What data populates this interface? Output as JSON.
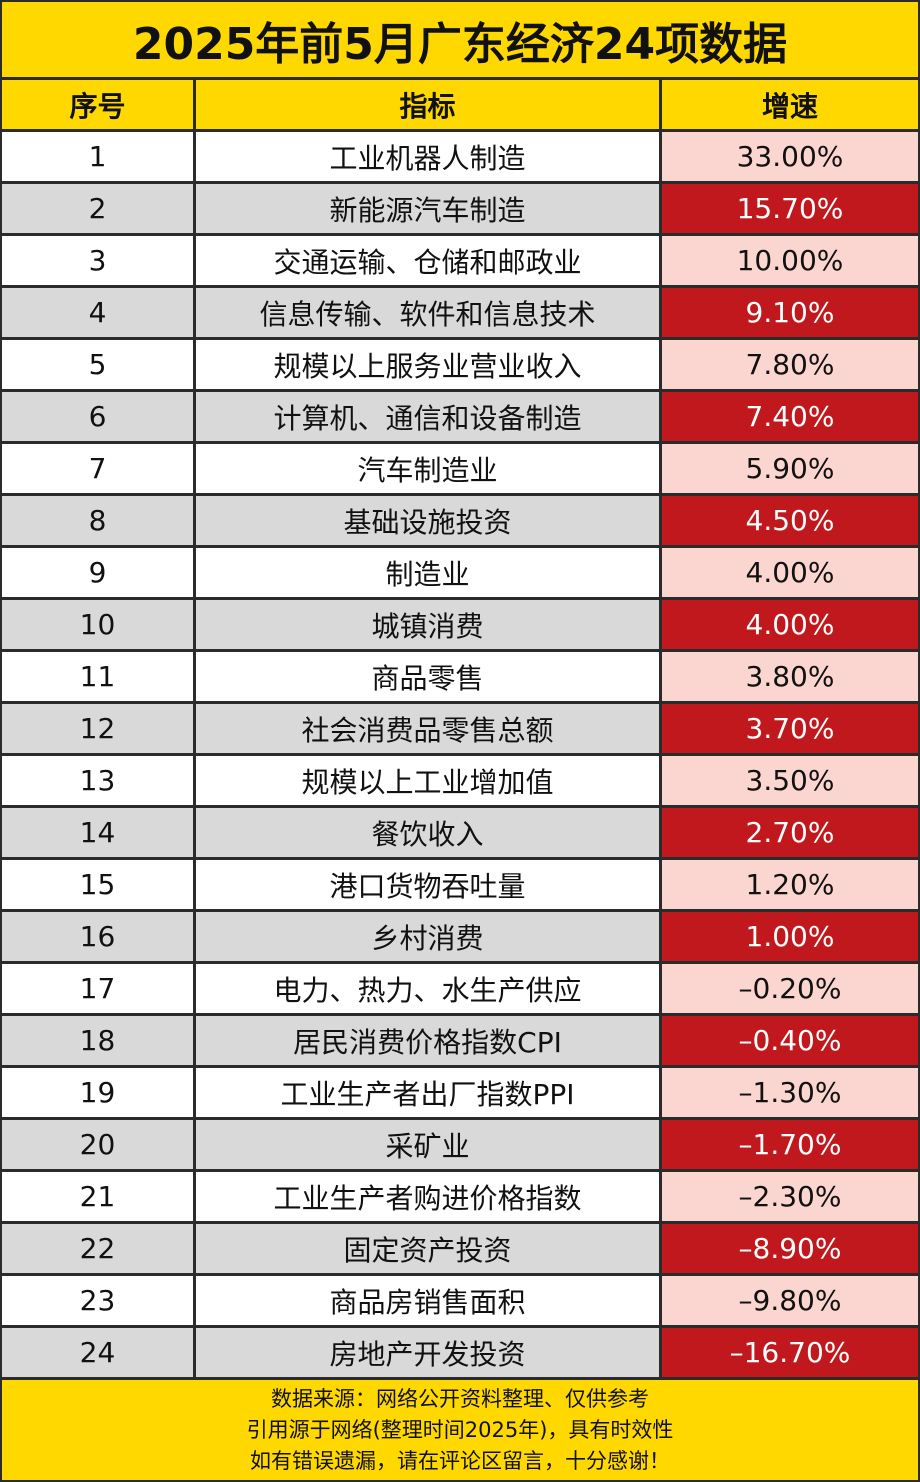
{
  "title": "2025年前5月广东经济24项数据",
  "header": {
    "index": "序号",
    "indicator": "指标",
    "growth": "增速"
  },
  "colors": {
    "banner": "#ffd800",
    "odd_rate_bg": "#fbd5d0",
    "even_rate_bg": "#c0181d",
    "even_row_bg": "#d9d9d9",
    "odd_row_bg": "#ffffff",
    "border": "#2b2b2b"
  },
  "rows": [
    {
      "index": "1",
      "indicator": "工业机器人制造",
      "growth": "33.00%"
    },
    {
      "index": "2",
      "indicator": "新能源汽车制造",
      "growth": "15.70%"
    },
    {
      "index": "3",
      "indicator": "交通运输、仓储和邮政业",
      "growth": "10.00%"
    },
    {
      "index": "4",
      "indicator": "信息传输、软件和信息技术",
      "growth": "9.10%"
    },
    {
      "index": "5",
      "indicator": "规模以上服务业营业收入",
      "growth": "7.80%"
    },
    {
      "index": "6",
      "indicator": "计算机、通信和设备制造",
      "growth": "7.40%"
    },
    {
      "index": "7",
      "indicator": "汽车制造业",
      "growth": "5.90%"
    },
    {
      "index": "8",
      "indicator": "基础设施投资",
      "growth": "4.50%"
    },
    {
      "index": "9",
      "indicator": "制造业",
      "growth": "4.00%"
    },
    {
      "index": "10",
      "indicator": "城镇消费",
      "growth": "4.00%"
    },
    {
      "index": "11",
      "indicator": "商品零售",
      "growth": "3.80%"
    },
    {
      "index": "12",
      "indicator": "社会消费品零售总额",
      "growth": "3.70%"
    },
    {
      "index": "13",
      "indicator": "规模以上工业增加值",
      "growth": "3.50%"
    },
    {
      "index": "14",
      "indicator": "餐饮收入",
      "growth": "2.70%"
    },
    {
      "index": "15",
      "indicator": "港口货物吞吐量",
      "growth": "1.20%"
    },
    {
      "index": "16",
      "indicator": "乡村消费",
      "growth": "1.00%"
    },
    {
      "index": "17",
      "indicator": "电力、热力、水生产供应",
      "growth": "–0.20%"
    },
    {
      "index": "18",
      "indicator": "居民消费价格指数CPI",
      "growth": "–0.40%"
    },
    {
      "index": "19",
      "indicator": "工业生产者出厂指数PPI",
      "growth": "–1.30%"
    },
    {
      "index": "20",
      "indicator": "采矿业",
      "growth": "–1.70%"
    },
    {
      "index": "21",
      "indicator": "工业生产者购进价格指数",
      "growth": "–2.30%"
    },
    {
      "index": "22",
      "indicator": "固定资产投资",
      "growth": "–8.90%"
    },
    {
      "index": "23",
      "indicator": "商品房销售面积",
      "growth": "–9.80%"
    },
    {
      "index": "24",
      "indicator": "房地产开发投资",
      "growth": "–16.70%"
    }
  ],
  "footer": {
    "line1": "数据来源：网络公开资料整理、仅供参考",
    "line2": "引用源于网络(整理时间2025年)，具有时效性",
    "line3": "如有错误遗漏，请在评论区留言，十分感谢！"
  },
  "chart_data": {
    "type": "table",
    "title": "2025年前5月广东经济24项数据",
    "columns": [
      "序号",
      "指标",
      "增速"
    ],
    "categories": [
      "工业机器人制造",
      "新能源汽车制造",
      "交通运输、仓储和邮政业",
      "信息传输、软件和信息技术",
      "规模以上服务业营业收入",
      "计算机、通信和设备制造",
      "汽车制造业",
      "基础设施投资",
      "制造业",
      "城镇消费",
      "商品零售",
      "社会消费品零售总额",
      "规模以上工业增加值",
      "餐饮收入",
      "港口货物吞吐量",
      "乡村消费",
      "电力、热力、水生产供应",
      "居民消费价格指数CPI",
      "工业生产者出厂指数PPI",
      "采矿业",
      "工业生产者购进价格指数",
      "固定资产投资",
      "商品房销售面积",
      "房地产开发投资"
    ],
    "values": [
      33.0,
      15.7,
      10.0,
      9.1,
      7.8,
      7.4,
      5.9,
      4.5,
      4.0,
      4.0,
      3.8,
      3.7,
      3.5,
      2.7,
      1.2,
      1.0,
      -0.2,
      -0.4,
      -1.3,
      -1.7,
      -2.3,
      -8.9,
      -9.8,
      -16.7
    ],
    "unit": "%"
  }
}
